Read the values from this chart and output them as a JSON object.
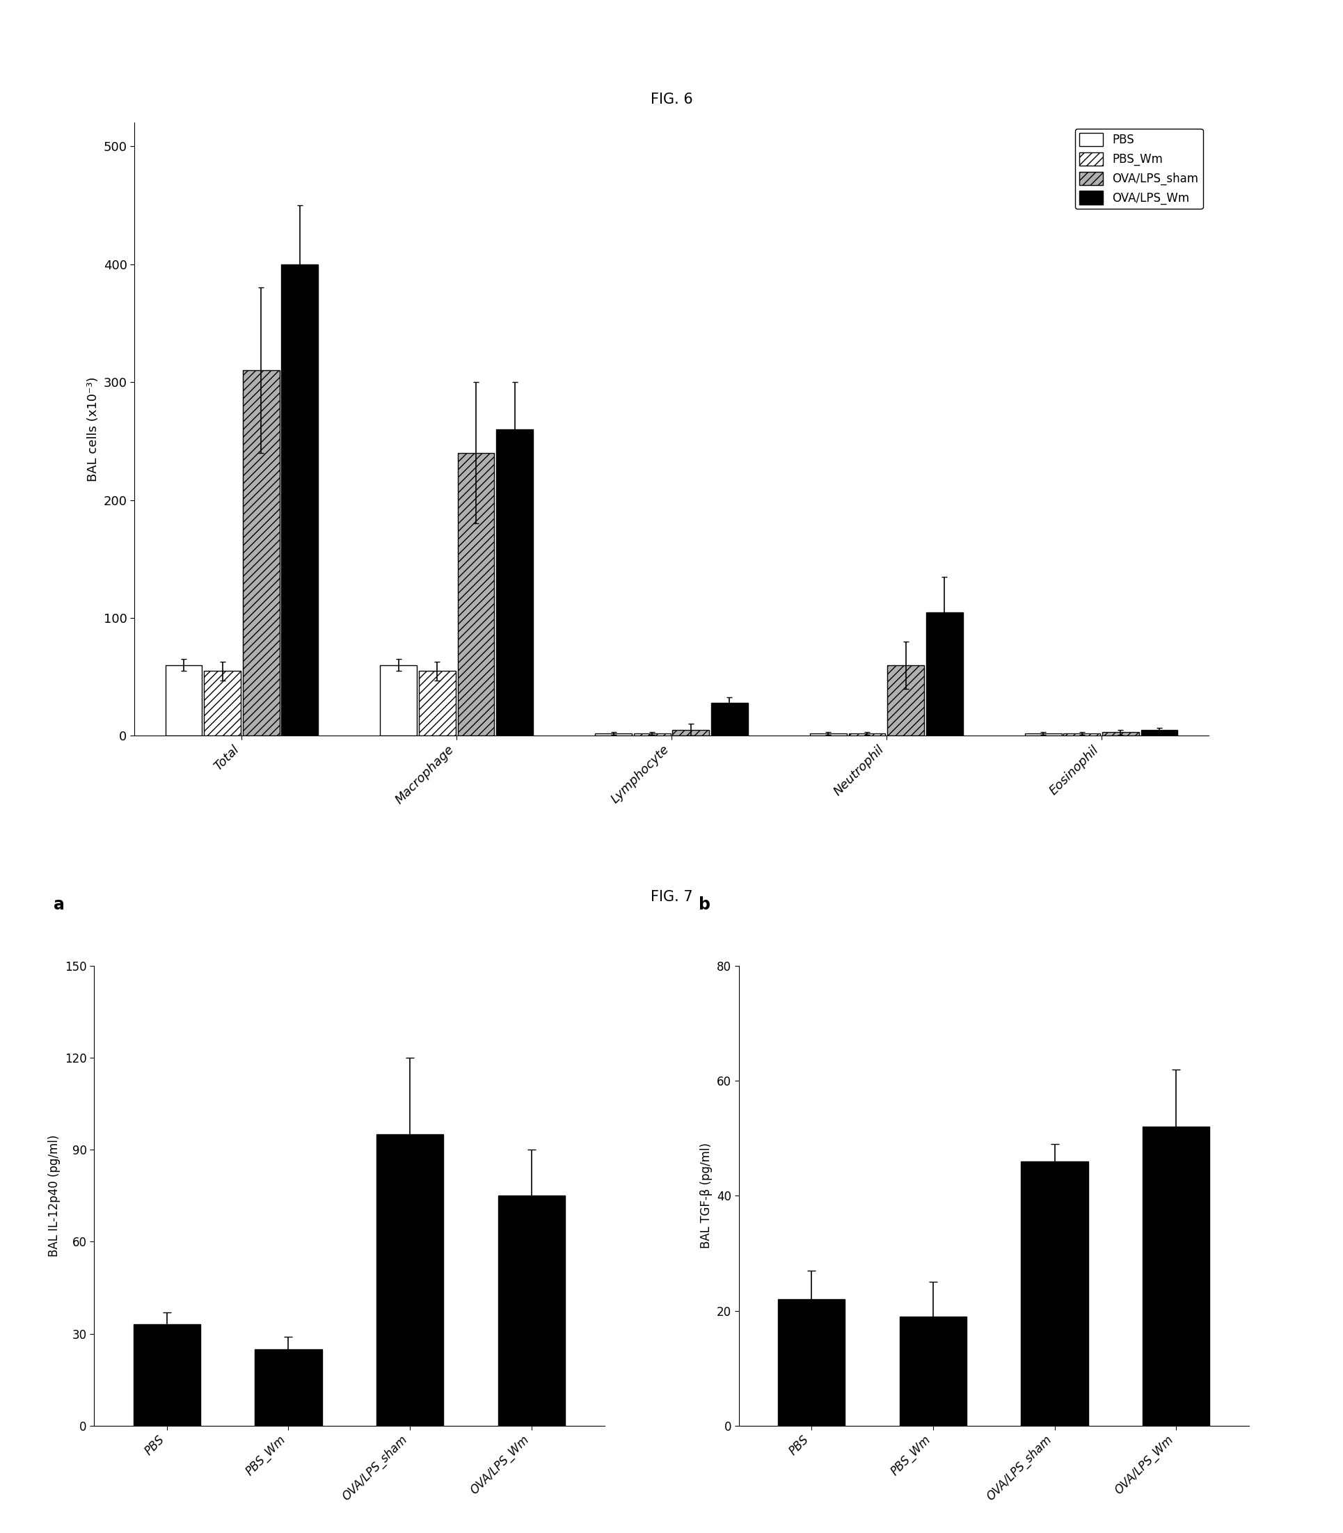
{
  "fig6": {
    "title": "FIG. 6",
    "categories": [
      "Total",
      "Macrophage",
      "Lymphocyte",
      "Neutrophil",
      "Eosinophil"
    ],
    "series": {
      "PBS": [
        60,
        60,
        2,
        2,
        2
      ],
      "PBS_Wm": [
        55,
        55,
        2,
        2,
        2
      ],
      "OVA/LPS_sham": [
        310,
        240,
        5,
        60,
        3
      ],
      "OVA/LPS_Wm": [
        400,
        260,
        28,
        105,
        5
      ]
    },
    "errors": {
      "PBS": [
        5,
        5,
        1,
        1,
        1
      ],
      "PBS_Wm": [
        8,
        8,
        1,
        1,
        1
      ],
      "OVA/LPS_sham": [
        70,
        60,
        5,
        20,
        2
      ],
      "OVA/LPS_Wm": [
        50,
        40,
        5,
        30,
        2
      ]
    },
    "ylabel": "BAL cells (x10⁻³)",
    "ylim": [
      0,
      520
    ],
    "yticks": [
      0,
      100,
      200,
      300,
      400,
      500
    ],
    "legend_labels": [
      "PBS",
      "PBS_Wm",
      "OVA/LPS_sham",
      "OVA/LPS_Wm"
    ],
    "bar_colors": [
      "white",
      "white",
      "lightgray",
      "black"
    ],
    "bar_hatches": [
      "",
      "///",
      "///",
      "///"
    ],
    "bar_edgecolors": [
      "black",
      "black",
      "black",
      "black"
    ]
  },
  "fig7a": {
    "title": "a",
    "categories": [
      "PBS",
      "PBS_Wm",
      "OVA/LPS_sham",
      "OVA/LPS_Wm"
    ],
    "values": [
      33,
      25,
      95,
      75
    ],
    "errors": [
      4,
      4,
      25,
      15
    ],
    "ylabel": "BAL IL-12p40 (pg/ml)",
    "ylim": [
      0,
      150
    ],
    "yticks": [
      0,
      30,
      60,
      90,
      120,
      150
    ],
    "bar_color": "black"
  },
  "fig7b": {
    "title": "b",
    "categories": [
      "PBS",
      "PBS_Wm",
      "OVA/LPS_sham",
      "OVA/LPS_Wm"
    ],
    "values": [
      22,
      19,
      46,
      52
    ],
    "errors": [
      5,
      6,
      3,
      10
    ],
    "ylabel": "BAL TGF-β (pg/ml)",
    "ylim": [
      0,
      80
    ],
    "yticks": [
      0,
      20,
      40,
      60,
      80
    ],
    "bar_color": "black"
  },
  "fig7_title": "FIG. 7",
  "background_color": "white",
  "font_size": 13,
  "title_font_size": 15
}
